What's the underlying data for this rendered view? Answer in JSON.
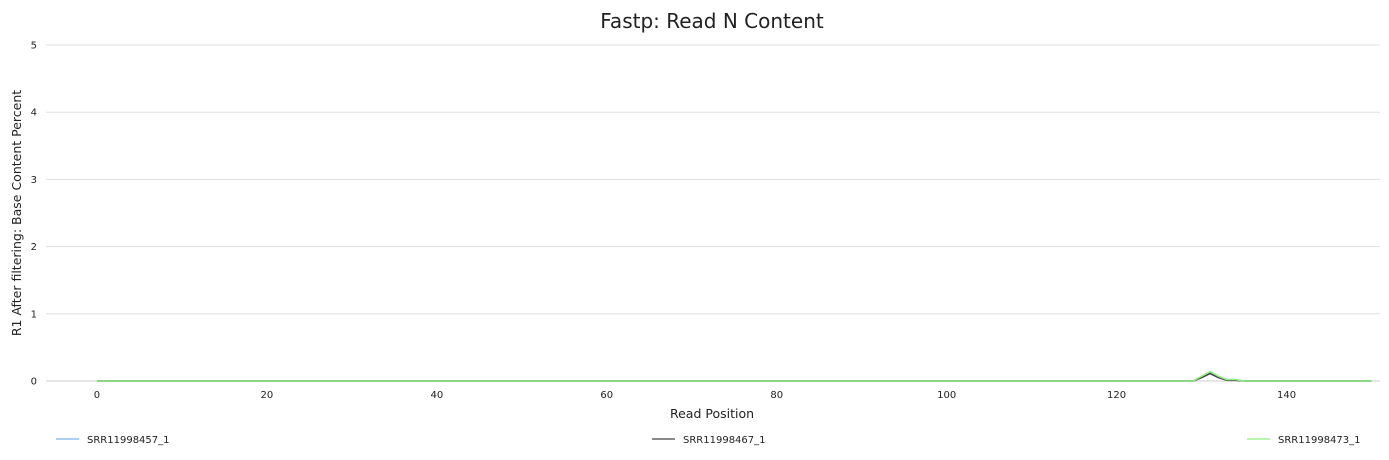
{
  "chart_data": {
    "type": "line",
    "title": "Fastp: Read N Content",
    "xlabel": "Read Position",
    "ylabel": "R1 After filtering: Base Content Percent",
    "xlim": [
      -6,
      151
    ],
    "ylim": [
      0,
      5
    ],
    "xticks": [
      0,
      20,
      40,
      60,
      80,
      100,
      120,
      140
    ],
    "yticks": [
      0,
      1,
      2,
      3,
      4,
      5
    ],
    "grid": "horizontal",
    "legend_position": "bottom",
    "series": [
      {
        "name": "SRR11998457_1",
        "color": "#7cb5ec",
        "x": [
          0,
          10,
          20,
          30,
          40,
          50,
          60,
          70,
          80,
          90,
          100,
          110,
          120,
          125,
          126,
          127,
          128,
          129,
          130,
          131,
          132,
          133,
          134,
          135,
          136,
          137,
          138,
          139,
          140,
          145,
          150
        ],
        "y": [
          0,
          0,
          0,
          0,
          0,
          0,
          0,
          0,
          0,
          0,
          0,
          0,
          0,
          0,
          0,
          0,
          0,
          0,
          0.06,
          0.13,
          0.06,
          0.02,
          0.02,
          0,
          0,
          0,
          0,
          0,
          0,
          0,
          0
        ]
      },
      {
        "name": "SRR11998467_1",
        "color": "#434348",
        "x": [
          0,
          10,
          20,
          30,
          40,
          50,
          60,
          70,
          80,
          90,
          100,
          110,
          120,
          125,
          126,
          127,
          128,
          129,
          130,
          131,
          132,
          133,
          134,
          135,
          136,
          137,
          138,
          139,
          140,
          145,
          150
        ],
        "y": [
          0,
          0,
          0,
          0,
          0,
          0,
          0,
          0,
          0,
          0,
          0,
          0,
          0,
          0,
          0,
          0,
          0,
          0,
          0.05,
          0.11,
          0.05,
          0.01,
          0.01,
          0,
          0,
          0,
          0,
          0,
          0,
          0,
          0
        ]
      },
      {
        "name": "SRR11998473_1",
        "color": "#90ed7d",
        "x": [
          0,
          10,
          20,
          30,
          40,
          50,
          60,
          70,
          80,
          90,
          100,
          110,
          120,
          125,
          126,
          127,
          128,
          129,
          130,
          131,
          132,
          133,
          134,
          135,
          136,
          137,
          138,
          139,
          140,
          145,
          150
        ],
        "y": [
          0,
          0,
          0,
          0,
          0,
          0,
          0,
          0,
          0,
          0,
          0,
          0,
          0,
          0,
          0,
          0,
          0,
          0,
          0.07,
          0.14,
          0.07,
          0.02,
          0.02,
          0,
          0,
          0,
          0,
          0,
          0,
          0,
          0
        ]
      }
    ]
  }
}
